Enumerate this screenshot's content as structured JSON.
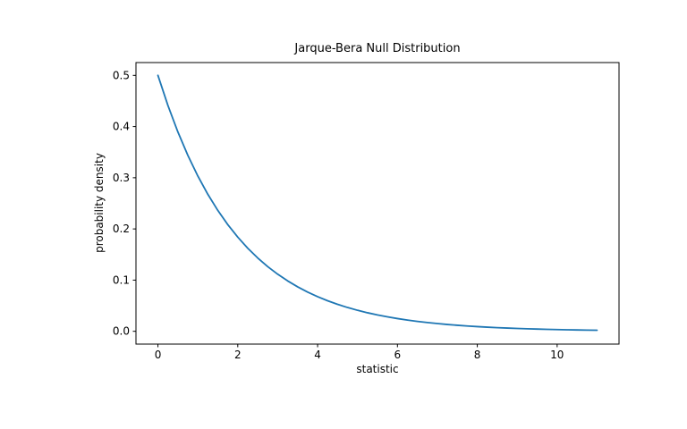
{
  "figure": {
    "background": "#ffffff",
    "axes_edge_color": "#000000",
    "text_color": "#000000"
  },
  "chart_data": {
    "type": "line",
    "title": "Jarque-Bera Null Distribution",
    "xlabel": "statistic",
    "ylabel": "probability density",
    "xlim": [
      -0.55,
      11.55
    ],
    "ylim": [
      -0.025,
      0.525
    ],
    "xtick_labels": [
      "0",
      "2",
      "4",
      "6",
      "8",
      "10"
    ],
    "xtick_values": [
      0,
      2,
      4,
      6,
      8,
      10
    ],
    "ytick_labels": [
      "0.0",
      "0.1",
      "0.2",
      "0.3",
      "0.4",
      "0.5"
    ],
    "ytick_values": [
      0.0,
      0.1,
      0.2,
      0.3,
      0.4,
      0.5
    ],
    "grid": false,
    "legend": null,
    "series": [
      {
        "color": "#1f77b4",
        "x": [
          0,
          0.25,
          0.5,
          0.75,
          1,
          1.25,
          1.5,
          1.75,
          2,
          2.25,
          2.5,
          2.75,
          3,
          3.25,
          3.5,
          3.75,
          4,
          4.25,
          4.5,
          4.75,
          5,
          5.25,
          5.5,
          5.75,
          6,
          6.25,
          6.5,
          6.75,
          7,
          7.25,
          7.5,
          7.75,
          8,
          8.25,
          8.5,
          8.75,
          9,
          9.25,
          9.5,
          9.75,
          10,
          10.25,
          10.5,
          10.75,
          11
        ],
        "y": [
          0.5,
          0.44125,
          0.3894,
          0.34365,
          0.30327,
          0.26763,
          0.23618,
          0.20843,
          0.18394,
          0.16232,
          0.14325,
          0.12641,
          0.11157,
          0.09846,
          0.08689,
          0.07668,
          0.06767,
          0.05972,
          0.0527,
          0.0465,
          0.04104,
          0.03622,
          0.03196,
          0.02821,
          0.02489,
          0.02197,
          0.01939,
          0.01711,
          0.0151,
          0.01333,
          0.01176,
          0.01038,
          0.00916,
          0.00808,
          0.00713,
          0.00629,
          0.00555,
          0.0049,
          0.00433,
          0.00382,
          0.00337,
          0.00297,
          0.00262,
          0.00232,
          0.00204
        ]
      }
    ]
  }
}
